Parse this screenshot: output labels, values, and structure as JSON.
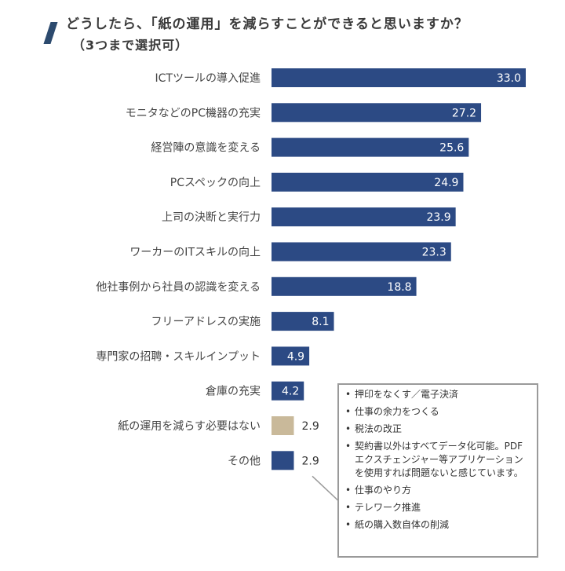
{
  "title": {
    "line1": "どうしたら、「紙の運用」を減らすことができると思いますか？",
    "line2": "（3つまで選択可）"
  },
  "colors": {
    "bar": "#2c4a84",
    "bar_highlight": "#c9b99a",
    "value_text_inside": "#ffffff",
    "value_text_outside": "#333333",
    "title_mark": "#2c4a6e"
  },
  "chart_data": {
    "type": "bar",
    "orientation": "horizontal",
    "categories": [
      "ICTツールの導入促進",
      "モニタなどのPC機器の充実",
      "経営陣の意識を変える",
      "PCスペックの向上",
      "上司の決断と実行力",
      "ワーカーのITスキルの向上",
      "他社事例から社員の認識を変える",
      "フリーアドレスの実施",
      "専門家の招聘・スキルインプット",
      "倉庫の充実",
      "紙の運用を減らす必要はない",
      "その他"
    ],
    "values": [
      33.0,
      27.2,
      25.6,
      24.9,
      23.9,
      23.3,
      18.8,
      8.1,
      4.9,
      4.2,
      2.9,
      2.9
    ],
    "value_labels": [
      "33.0",
      "27.2",
      "25.6",
      "24.9",
      "23.9",
      "23.3",
      "18.8",
      "8.1",
      "4.9",
      "4.2",
      "2.9",
      "2.9"
    ],
    "highlight_category": "紙の運用を減らす必要はない",
    "xlim": [
      0,
      33.0
    ],
    "grid": false,
    "title": "",
    "xlabel": "",
    "ylabel": ""
  },
  "other_notes": {
    "items": [
      "押印をなくす／電子決済",
      "仕事の余力をつくる",
      "税法の改正",
      "契約書以外はすべてデータ化可能。PDFエクスチェンジャー等アプリケーションを使用すれば問題ないと感じています。",
      "仕事のやり方",
      "テレワーク推進",
      "紙の購入数自体の削減"
    ]
  }
}
